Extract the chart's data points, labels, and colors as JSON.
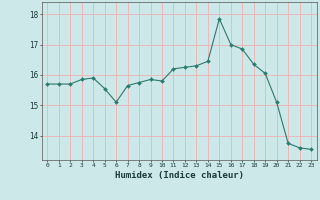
{
  "x": [
    0,
    1,
    2,
    3,
    4,
    5,
    6,
    7,
    8,
    9,
    10,
    11,
    12,
    13,
    14,
    15,
    16,
    17,
    18,
    19,
    20,
    21,
    22,
    23
  ],
  "y": [
    15.7,
    15.7,
    15.7,
    15.85,
    15.9,
    15.55,
    15.1,
    15.65,
    15.75,
    15.85,
    15.8,
    16.2,
    16.25,
    16.3,
    16.45,
    17.85,
    17.0,
    16.85,
    16.35,
    16.05,
    15.1,
    13.75,
    13.6,
    13.55
  ],
  "xlabel": "Humidex (Indice chaleur)",
  "ylim": [
    13.2,
    18.4
  ],
  "yticks": [
    14,
    15,
    16,
    17,
    18
  ],
  "xticks": [
    0,
    1,
    2,
    3,
    4,
    5,
    6,
    7,
    8,
    9,
    10,
    11,
    12,
    13,
    14,
    15,
    16,
    17,
    18,
    19,
    20,
    21,
    22,
    23
  ],
  "line_color": "#2d7a6e",
  "grid_color": "#f0b0b0",
  "plot_bg": "#cce8e8",
  "fig_bg": "#cce8e8"
}
